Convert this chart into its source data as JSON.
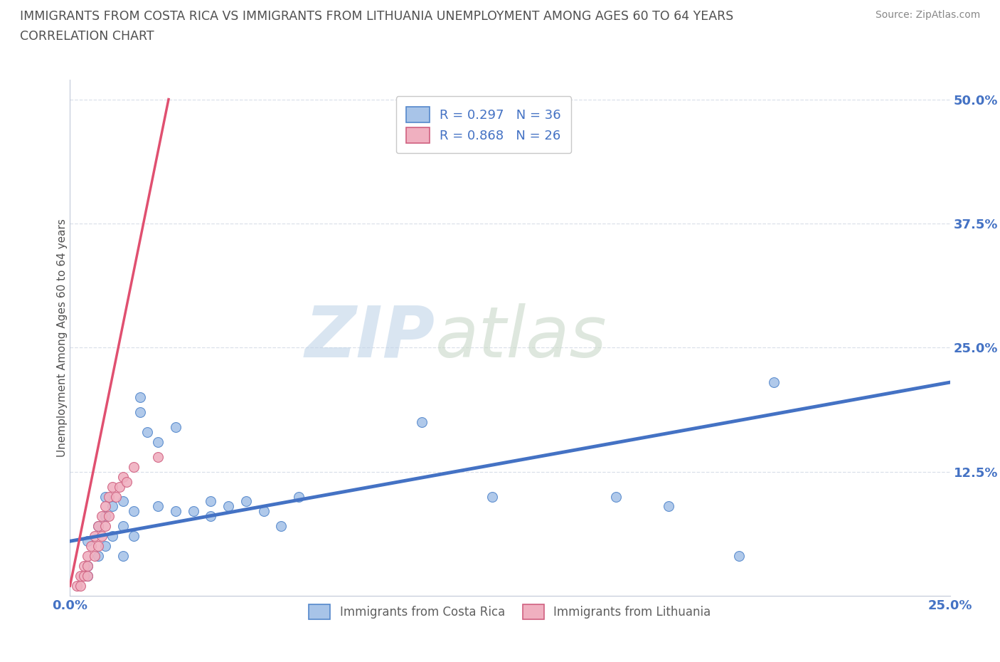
{
  "title_line1": "IMMIGRANTS FROM COSTA RICA VS IMMIGRANTS FROM LITHUANIA UNEMPLOYMENT AMONG AGES 60 TO 64 YEARS",
  "title_line2": "CORRELATION CHART",
  "source": "Source: ZipAtlas.com",
  "ylabel": "Unemployment Among Ages 60 to 64 years",
  "xlim": [
    0.0,
    0.25
  ],
  "ylim": [
    0.0,
    0.52
  ],
  "xticks": [
    0.0,
    0.025,
    0.05,
    0.075,
    0.1,
    0.125,
    0.15,
    0.175,
    0.2,
    0.225,
    0.25
  ],
  "xticklabels": [
    "0.0%",
    "",
    "",
    "",
    "",
    "",
    "",
    "",
    "",
    "",
    "25.0%"
  ],
  "yticks": [
    0.0,
    0.125,
    0.25,
    0.375,
    0.5
  ],
  "yticklabels": [
    "",
    "12.5%",
    "25.0%",
    "37.5%",
    "50.0%"
  ],
  "costa_rica_x": [
    0.005,
    0.005,
    0.005,
    0.008,
    0.008,
    0.01,
    0.01,
    0.01,
    0.012,
    0.012,
    0.015,
    0.015,
    0.015,
    0.018,
    0.018,
    0.02,
    0.02,
    0.022,
    0.025,
    0.025,
    0.03,
    0.03,
    0.035,
    0.04,
    0.04,
    0.045,
    0.05,
    0.055,
    0.06,
    0.065,
    0.1,
    0.12,
    0.155,
    0.17,
    0.19,
    0.2
  ],
  "costa_rica_y": [
    0.055,
    0.03,
    0.02,
    0.07,
    0.04,
    0.1,
    0.08,
    0.05,
    0.09,
    0.06,
    0.095,
    0.07,
    0.04,
    0.085,
    0.06,
    0.2,
    0.185,
    0.165,
    0.155,
    0.09,
    0.17,
    0.085,
    0.085,
    0.095,
    0.08,
    0.09,
    0.095,
    0.085,
    0.07,
    0.1,
    0.175,
    0.1,
    0.1,
    0.09,
    0.04,
    0.215
  ],
  "lithuania_x": [
    0.002,
    0.003,
    0.003,
    0.004,
    0.004,
    0.005,
    0.005,
    0.005,
    0.006,
    0.007,
    0.007,
    0.008,
    0.008,
    0.009,
    0.009,
    0.01,
    0.01,
    0.011,
    0.011,
    0.012,
    0.013,
    0.014,
    0.015,
    0.016,
    0.018,
    0.025
  ],
  "lithuania_y": [
    0.01,
    0.02,
    0.01,
    0.03,
    0.02,
    0.04,
    0.03,
    0.02,
    0.05,
    0.06,
    0.04,
    0.07,
    0.05,
    0.08,
    0.06,
    0.09,
    0.07,
    0.1,
    0.08,
    0.11,
    0.1,
    0.11,
    0.12,
    0.115,
    0.13,
    0.14
  ],
  "costa_rica_color": "#a8c4e8",
  "costa_rica_edge_color": "#5588cc",
  "costa_rica_line_color": "#4472c4",
  "lithuania_color": "#f0b0c0",
  "lithuania_edge_color": "#d06080",
  "lithuania_line_color": "#e05070",
  "costa_rica_R": 0.297,
  "costa_rica_N": 36,
  "lithuania_R": 0.868,
  "lithuania_N": 26,
  "cr_trend_x0": 0.0,
  "cr_trend_x1": 0.25,
  "cr_trend_y0": 0.055,
  "cr_trend_y1": 0.215,
  "lt_trend_x0": 0.0,
  "lt_trend_x1": 0.028,
  "lt_trend_y0": 0.01,
  "lt_trend_y1": 0.5,
  "watermark": "ZIPAtlas",
  "watermark_color_zip": "#c0d4e8",
  "watermark_color_atlas": "#c8d8c8",
  "background_color": "#ffffff",
  "title_color": "#505050",
  "tick_label_color": "#4472c4",
  "grid_color": "#d8dde8",
  "scatter_size": 100
}
